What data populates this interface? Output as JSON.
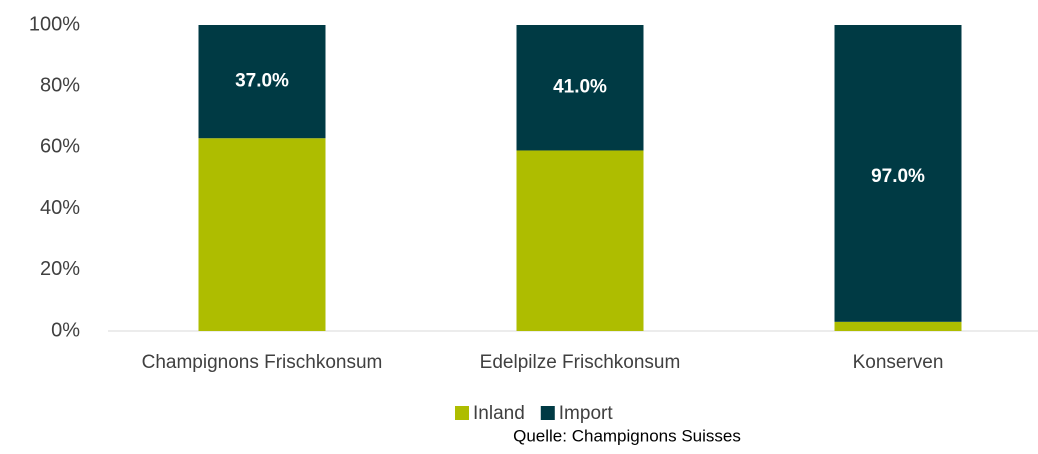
{
  "chart_data": {
    "type": "stacked_bar",
    "categories": [
      "Champignons Frischkonsum",
      "Edelpilze Frischkonsum",
      "Konserven"
    ],
    "series": [
      {
        "name": "Inland",
        "color": "#aebd00",
        "values": [
          63,
          59,
          3
        ]
      },
      {
        "name": "Import",
        "color": "#003a44",
        "values": [
          37,
          41,
          97
        ],
        "value_labels": [
          "37.0%",
          "41.0%",
          "97.0%"
        ]
      }
    ],
    "ylim": [
      0,
      100
    ],
    "yticks": [
      {
        "value": 0,
        "label": "0%"
      },
      {
        "value": 20,
        "label": "20%"
      },
      {
        "value": 40,
        "label": "40%"
      },
      {
        "value": 60,
        "label": "60%"
      },
      {
        "value": 80,
        "label": "80%"
      },
      {
        "value": 100,
        "label": "100%"
      }
    ],
    "grid": false,
    "legend": "bottom",
    "source": "Quelle: Champignons Suisses"
  }
}
